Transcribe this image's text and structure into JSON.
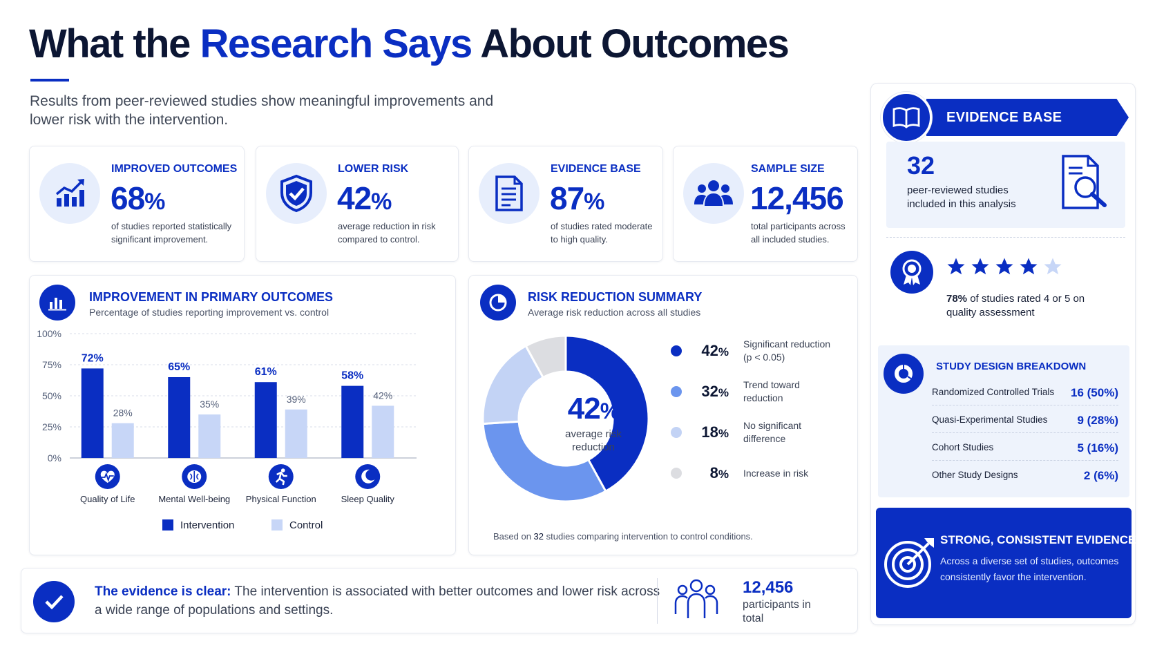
{
  "header": {
    "title_part1": "What the",
    "title_highlight": "Research Says",
    "title_part2": "About Outcomes",
    "subtitle": "Results from peer-reviewed studies show meaningful improvements and lower risk with the intervention."
  },
  "stats": [
    {
      "label": "IMPROVED OUTCOMES",
      "value": "68",
      "unit": "%",
      "desc": "of studies reported statistically significant improvement.",
      "icon": "trend-up-chart-icon"
    },
    {
      "label": "LOWER RISK",
      "value": "42",
      "unit": "%",
      "desc": "average reduction in risk compared to control.",
      "icon": "shield-check-icon"
    },
    {
      "label": "EVIDENCE BASE",
      "value": "87",
      "unit": "%",
      "desc": "of studies rated moderate to high quality.",
      "icon": "document-icon"
    },
    {
      "label": "SAMPLE SIZE",
      "value": "12,456",
      "unit": "",
      "desc": "total participants across all included studies.",
      "icon": "people-group-icon"
    }
  ],
  "bar_panel": {
    "title": "IMPROVEMENT IN PRIMARY OUTCOMES",
    "subtitle": "Percentage of studies reporting improvement vs. control",
    "icon": "bar-chart-icon",
    "legend_intervention": "Intervention",
    "legend_control": "Control",
    "category_icons": [
      "heart-pulse-icon",
      "brain-icon",
      "running-person-icon",
      "moon-icon"
    ]
  },
  "donut_panel": {
    "title": "RISK REDUCTION SUMMARY",
    "subtitle": "Average risk reduction across all studies",
    "icon": "pie-chart-icon",
    "center_value": "42",
    "center_unit": "%",
    "center_label": "average risk reduction",
    "footnote_pre": "Based on ",
    "footnote_num": "32",
    "footnote_post": " studies comparing intervention to control conditions."
  },
  "chart_data": [
    {
      "type": "bar",
      "title": "IMPROVEMENT IN PRIMARY OUTCOMES",
      "subtitle": "Percentage of studies reporting improvement vs. control",
      "categories": [
        "Quality of Life",
        "Mental Well-being",
        "Physical Function",
        "Sleep Quality"
      ],
      "series": [
        {
          "name": "Intervention",
          "values": [
            72,
            65,
            61,
            58
          ],
          "color": "#0a2ec2"
        },
        {
          "name": "Control",
          "values": [
            28,
            35,
            39,
            42
          ],
          "color": "#c7d6f7"
        }
      ],
      "ylim": [
        0,
        100
      ],
      "yticks": [
        "100%",
        "75%",
        "50%",
        "25%",
        "0%"
      ],
      "grid": true,
      "legend": "bottom"
    },
    {
      "type": "pie",
      "title": "RISK REDUCTION SUMMARY",
      "subtitle": "Average risk reduction across all studies",
      "slices": [
        {
          "pct_label": "42",
          "value": 42,
          "label": "Significant reduction (p < 0.05)",
          "color": "#0a2ec2"
        },
        {
          "pct_label": "32",
          "value": 32,
          "label": "Trend toward reduction",
          "color": "#6b95ee"
        },
        {
          "pct_label": "18",
          "value": 18,
          "label": "No significant difference",
          "color": "#c3d3f5"
        },
        {
          "pct_label": "8",
          "value": 8,
          "label": "Increase in risk",
          "color": "#dcdde1"
        }
      ],
      "unit": "%",
      "legend": "right"
    }
  ],
  "right_panel": {
    "banner_title": "EVIDENCE BASE",
    "banner_icon": "open-book-icon",
    "studies_count": "32",
    "studies_desc": "peer-reviewed studies included in this analysis",
    "studies_icon": "document-search-icon",
    "quality_icon": "award-ribbon-icon",
    "stars_filled": 4,
    "stars_total": 5,
    "quality_pct": "78%",
    "quality_desc": " of studies rated 4 or 5 on quality assessment",
    "breakdown_title": "STUDY DESIGN BREAKDOWN",
    "breakdown_icon": "donut-chart-icon",
    "breakdown": [
      {
        "label": "Randomized Controlled Trials",
        "value": "16  (50%)"
      },
      {
        "label": "Quasi-Experimental Studies",
        "value": "9  (28%)"
      },
      {
        "label": "Cohort Studies",
        "value": "5  (16%)"
      },
      {
        "label": "Other Study Designs",
        "value": "2   (6%)"
      }
    ],
    "strong_title": "STRONG, CONSISTENT EVIDENCE",
    "strong_desc": "Across a diverse set of studies, outcomes consistently favor the intervention.",
    "strong_icon": "target-arrow-icon"
  },
  "footer": {
    "check_icon": "checkmark-icon",
    "lead": "The evidence is clear:",
    "text": " The intervention is associated with better outcomes and lower risk across a wide range of populations and settings.",
    "people_icon": "people-outline-icon",
    "participants_value": "12,456",
    "participants_label": "participants in total"
  },
  "colors": {
    "primary": "#0a2ec2",
    "navy": "#0c1633",
    "light": "#c7d6f7",
    "mid": "#6b95ee",
    "pale": "#e7eefc"
  }
}
